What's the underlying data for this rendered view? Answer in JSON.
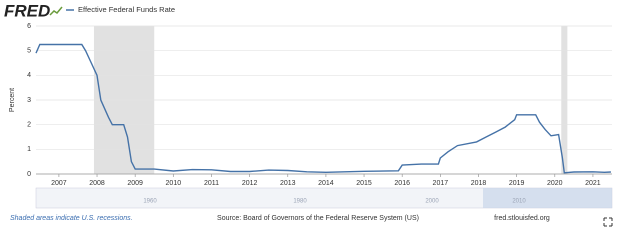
{
  "header": {
    "logo": "FRED"
  },
  "chart_data": {
    "type": "line",
    "y_label": "Percent",
    "x": [
      2006.4,
      2006.5,
      2007.6,
      2007.7,
      2007.85,
      2008.0,
      2008.1,
      2008.3,
      2008.4,
      2008.7,
      2008.8,
      2008.9,
      2009.0,
      2009.5,
      2010.0,
      2010.5,
      2011.0,
      2011.5,
      2012.0,
      2012.5,
      2013.0,
      2013.5,
      2014.0,
      2014.5,
      2015.0,
      2015.9,
      2016.0,
      2016.5,
      2016.95,
      2017.0,
      2017.2,
      2017.45,
      2017.95,
      2018.2,
      2018.45,
      2018.7,
      2018.95,
      2019.0,
      2019.5,
      2019.6,
      2019.75,
      2019.9,
      2020.1,
      2020.2,
      2020.25,
      2020.5,
      2021.0,
      2021.3,
      2021.47
    ],
    "series": [
      {
        "name": "Effective Federal Funds Rate",
        "color": "#4572a7",
        "values": [
          4.9,
          5.25,
          5.25,
          5.0,
          4.5,
          4.0,
          3.0,
          2.3,
          2.0,
          2.0,
          1.5,
          0.5,
          0.2,
          0.2,
          0.12,
          0.18,
          0.17,
          0.1,
          0.1,
          0.16,
          0.14,
          0.09,
          0.07,
          0.09,
          0.11,
          0.13,
          0.36,
          0.4,
          0.4,
          0.65,
          0.9,
          1.15,
          1.3,
          1.5,
          1.7,
          1.9,
          2.2,
          2.4,
          2.4,
          2.1,
          1.8,
          1.55,
          1.6,
          0.65,
          0.05,
          0.08,
          0.09,
          0.07,
          0.08
        ]
      }
    ],
    "recessions": [
      [
        2007.92,
        2009.5
      ],
      [
        2020.17,
        2020.33
      ]
    ],
    "recession_color": "#e1e1e1",
    "xlim": [
      2006.4,
      2021.5
    ],
    "xticks": [
      2007,
      2008,
      2009,
      2010,
      2011,
      2012,
      2013,
      2014,
      2015,
      2016,
      2017,
      2018,
      2019,
      2020,
      2021
    ],
    "ylim": [
      0,
      6
    ],
    "yticks": [
      0,
      1,
      2,
      3,
      4,
      5,
      6
    ],
    "grid": true
  },
  "navigator": {
    "labels": [
      "1960",
      "1980",
      "2000",
      "2010"
    ]
  },
  "footer": {
    "note": "Shaded areas indicate U.S. recessions.",
    "source": "Source: Board of Governors of the Federal Reserve System (US)",
    "site": "fred.stlouisfed.org"
  }
}
